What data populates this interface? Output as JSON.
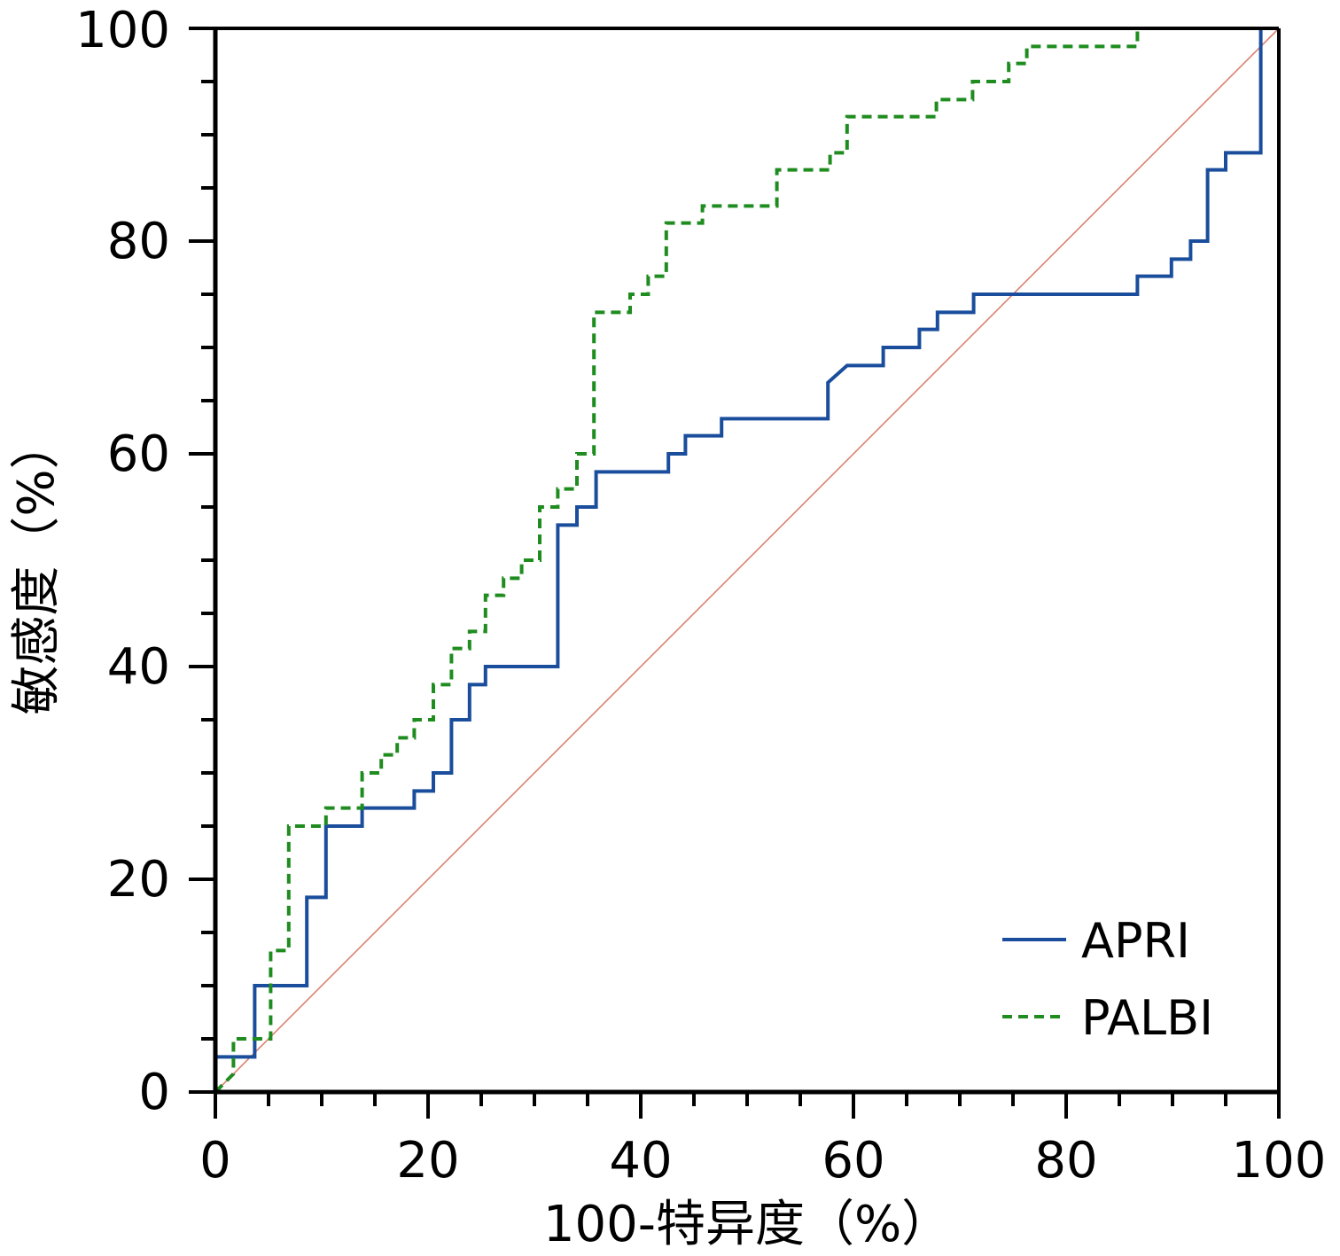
{
  "chart_data": {
    "type": "line",
    "title": "",
    "xlabel": "100-特异度（%）",
    "ylabel": "敏感度（%）",
    "xlim": [
      0,
      100
    ],
    "ylim": [
      0,
      100
    ],
    "xticks": [
      0,
      20,
      40,
      60,
      80,
      100
    ],
    "yticks": [
      0,
      20,
      40,
      60,
      80,
      100
    ],
    "xtick_labels": [
      "0",
      "20",
      "40",
      "60",
      "80",
      "100"
    ],
    "ytick_labels": [
      "0",
      "20",
      "40",
      "60",
      "80",
      "100"
    ],
    "minor_tick_step": 5,
    "grid": false,
    "legend_position": "bottom-right",
    "reference_line": {
      "name": "reference",
      "points": [
        [
          0,
          0
        ],
        [
          100,
          100
        ]
      ],
      "color": "#d9826f"
    },
    "series": [
      {
        "name": "APRI",
        "style": "solid",
        "color": "#1a4e9c",
        "points": [
          [
            0,
            0
          ],
          [
            0,
            3.3
          ],
          [
            3.7,
            3.3
          ],
          [
            3.7,
            10
          ],
          [
            8.6,
            10
          ],
          [
            8.6,
            18.3
          ],
          [
            10.4,
            18.3
          ],
          [
            10.4,
            25
          ],
          [
            13.8,
            25
          ],
          [
            13.8,
            26.7
          ],
          [
            18.7,
            26.7
          ],
          [
            18.7,
            28.3
          ],
          [
            20.5,
            28.3
          ],
          [
            20.5,
            30
          ],
          [
            22.2,
            30
          ],
          [
            22.2,
            35
          ],
          [
            23.9,
            35
          ],
          [
            23.9,
            38.3
          ],
          [
            25.4,
            38.3
          ],
          [
            25.4,
            40
          ],
          [
            32.2,
            40
          ],
          [
            32.2,
            53.3
          ],
          [
            34,
            53.3
          ],
          [
            34,
            55
          ],
          [
            35.8,
            55
          ],
          [
            35.8,
            58.3
          ],
          [
            42.6,
            58.3
          ],
          [
            42.6,
            60
          ],
          [
            44.2,
            60
          ],
          [
            44.2,
            61.7
          ],
          [
            47.6,
            61.7
          ],
          [
            47.6,
            63.3
          ],
          [
            57.6,
            63.3
          ],
          [
            57.6,
            66.7
          ],
          [
            59.4,
            68.3
          ],
          [
            62.8,
            68.3
          ],
          [
            62.8,
            70
          ],
          [
            66.2,
            70
          ],
          [
            66.2,
            71.7
          ],
          [
            67.9,
            71.7
          ],
          [
            67.9,
            73.3
          ],
          [
            71.3,
            73.3
          ],
          [
            71.3,
            75
          ],
          [
            86.7,
            75
          ],
          [
            86.7,
            76.7
          ],
          [
            89.9,
            76.7
          ],
          [
            89.9,
            78.3
          ],
          [
            91.7,
            78.3
          ],
          [
            91.7,
            80
          ],
          [
            93.3,
            80
          ],
          [
            93.3,
            86.7
          ],
          [
            95,
            86.7
          ],
          [
            95,
            88.3
          ],
          [
            98.3,
            88.3
          ],
          [
            98.3,
            100
          ],
          [
            100,
            100
          ]
        ]
      },
      {
        "name": "PALBI",
        "style": "dashed",
        "color": "#1f8c1f",
        "points": [
          [
            0,
            0
          ],
          [
            1.7,
            1.7
          ],
          [
            1.7,
            5
          ],
          [
            5.2,
            5
          ],
          [
            5.2,
            13.3
          ],
          [
            6.9,
            13.3
          ],
          [
            6.9,
            25
          ],
          [
            10.4,
            25
          ],
          [
            10.4,
            26.7
          ],
          [
            13.8,
            26.7
          ],
          [
            13.8,
            30
          ],
          [
            15.6,
            30
          ],
          [
            15.6,
            31.7
          ],
          [
            17.1,
            31.7
          ],
          [
            17.1,
            33.3
          ],
          [
            18.7,
            33.3
          ],
          [
            18.7,
            35
          ],
          [
            20.5,
            35
          ],
          [
            20.5,
            38.3
          ],
          [
            22.2,
            38.3
          ],
          [
            22.2,
            41.7
          ],
          [
            23.9,
            41.7
          ],
          [
            23.9,
            43.3
          ],
          [
            25.4,
            43.3
          ],
          [
            25.4,
            46.7
          ],
          [
            27.1,
            46.7
          ],
          [
            27.1,
            48.3
          ],
          [
            28.8,
            48.3
          ],
          [
            28.8,
            50
          ],
          [
            30.5,
            50
          ],
          [
            30.5,
            55
          ],
          [
            32.2,
            55
          ],
          [
            32.2,
            56.7
          ],
          [
            34,
            56.7
          ],
          [
            34,
            60
          ],
          [
            35.6,
            60
          ],
          [
            35.6,
            73.3
          ],
          [
            39,
            73.3
          ],
          [
            39,
            75
          ],
          [
            40.7,
            75
          ],
          [
            40.7,
            76.7
          ],
          [
            42.4,
            76.7
          ],
          [
            42.4,
            81.7
          ],
          [
            45.8,
            81.7
          ],
          [
            45.8,
            83.3
          ],
          [
            52.8,
            83.3
          ],
          [
            52.8,
            86.7
          ],
          [
            57.8,
            86.7
          ],
          [
            57.8,
            88.3
          ],
          [
            59.4,
            88.3
          ],
          [
            59.4,
            91.7
          ],
          [
            67.8,
            91.7
          ],
          [
            67.8,
            93.3
          ],
          [
            71.2,
            93.3
          ],
          [
            71.2,
            95
          ],
          [
            74.6,
            95
          ],
          [
            74.6,
            96.7
          ],
          [
            76.3,
            96.7
          ],
          [
            76.3,
            98.3
          ],
          [
            86.7,
            98.3
          ],
          [
            86.7,
            100
          ],
          [
            100,
            100
          ]
        ]
      }
    ]
  }
}
